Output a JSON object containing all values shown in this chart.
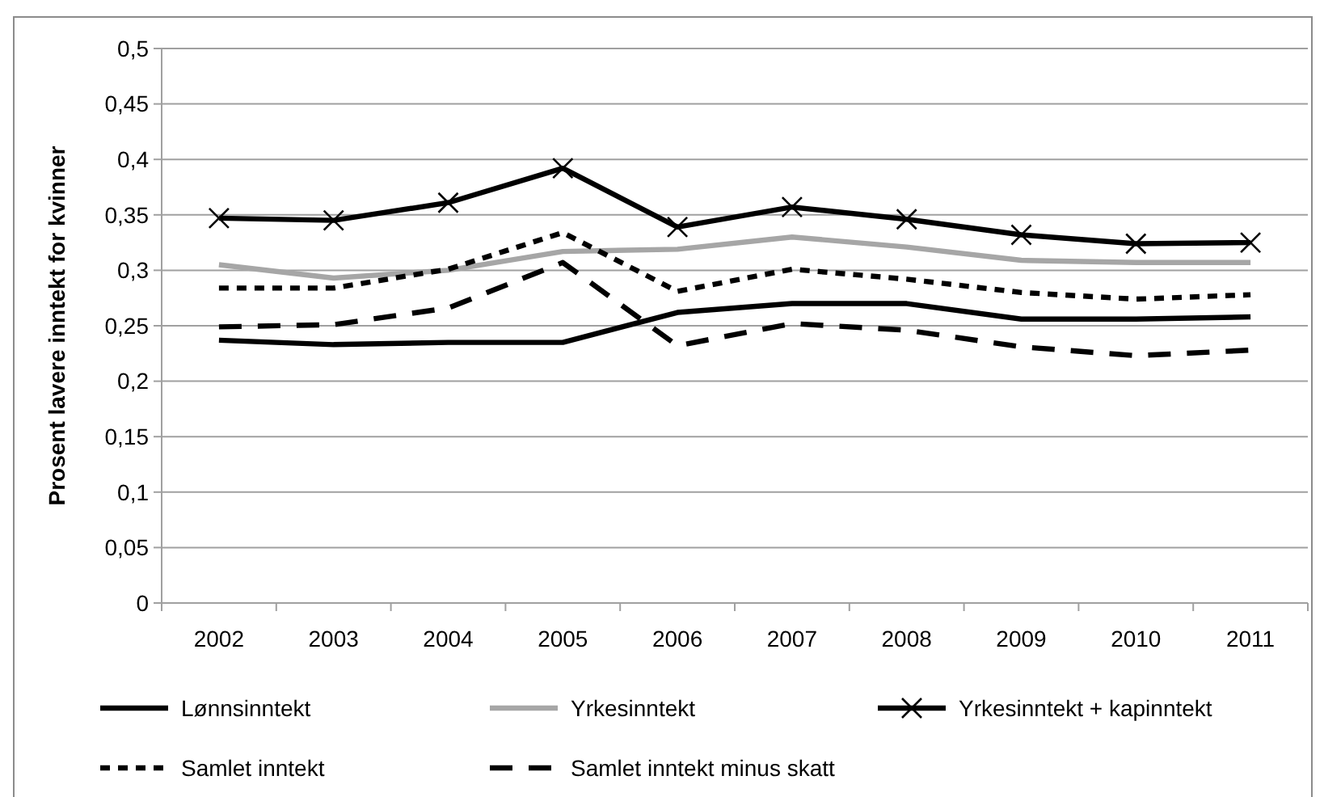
{
  "chart_data": {
    "type": "line",
    "ylabel": "Prosent lavere inntekt for kvinner",
    "categories": [
      "2002",
      "2003",
      "2004",
      "2005",
      "2006",
      "2007",
      "2008",
      "2009",
      "2010",
      "2011"
    ],
    "ylim": [
      0,
      0.5
    ],
    "yticks": [
      0,
      {
        "value": 0.05,
        "label": "0,05"
      },
      {
        "value": 0.1,
        "label": "0,1"
      },
      {
        "value": 0.15,
        "label": "0,15"
      },
      {
        "value": 0.2,
        "label": "0,2"
      },
      {
        "value": 0.25,
        "label": "0,25"
      },
      {
        "value": 0.3,
        "label": "0,3"
      },
      {
        "value": 0.35,
        "label": "0,35"
      },
      {
        "value": 0.4,
        "label": "0,4"
      },
      {
        "value": 0.45,
        "label": "0,45"
      },
      {
        "value": 0.5,
        "label": "0,5"
      }
    ],
    "grid": "y",
    "legend": "bottom",
    "series": [
      {
        "name": "Lønnsinntekt",
        "color": "#000000",
        "line_style": "solid",
        "marker": "none",
        "values": [
          0.237,
          0.233,
          0.235,
          0.235,
          0.262,
          0.27,
          0.27,
          0.256,
          0.256,
          0.258
        ]
      },
      {
        "name": "Yrkesinntekt",
        "color": "#a6a6a6",
        "line_style": "solid",
        "marker": "none",
        "values": [
          0.305,
          0.293,
          0.3,
          0.317,
          0.319,
          0.33,
          0.321,
          0.309,
          0.307,
          0.307
        ]
      },
      {
        "name": "Yrkesinntekt + kapinntekt",
        "color": "#000000",
        "line_style": "solid",
        "marker": "cross",
        "values": [
          0.347,
          0.345,
          0.361,
          0.392,
          0.339,
          0.357,
          0.346,
          0.332,
          0.324,
          0.325
        ]
      },
      {
        "name": "Samlet inntekt",
        "color": "#000000",
        "line_style": "dotted",
        "marker": "none",
        "values": [
          0.284,
          0.284,
          0.301,
          0.334,
          0.281,
          0.301,
          0.292,
          0.28,
          0.274,
          0.278
        ]
      },
      {
        "name": "Samlet inntekt minus skatt",
        "color": "#000000",
        "line_style": "dashed",
        "marker": "none",
        "values": [
          0.249,
          0.251,
          0.266,
          0.307,
          0.232,
          0.252,
          0.246,
          0.231,
          0.223,
          0.228
        ]
      }
    ]
  }
}
